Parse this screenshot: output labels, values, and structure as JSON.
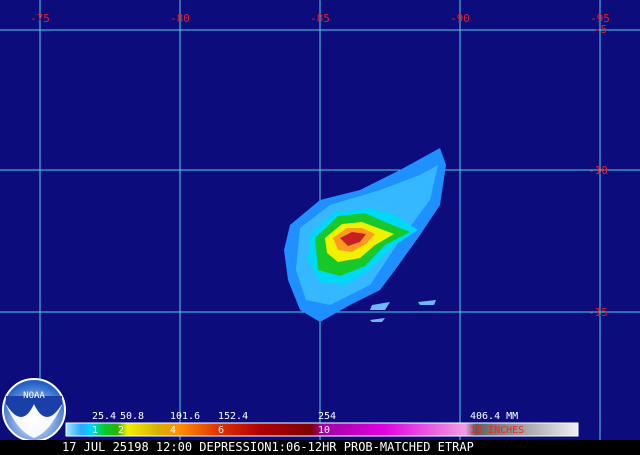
{
  "map": {
    "longitude_labels": [
      "-75",
      "-80",
      "-85",
      "-90",
      "-95"
    ],
    "latitude_labels": [
      "-5",
      "-10",
      "-15"
    ],
    "logo": "NOAA",
    "legend": {
      "mm_labels": [
        "25.4",
        "50.8",
        "101.6",
        "152.4",
        "254",
        "406.4 MM"
      ],
      "inch_labels": [
        "1",
        "2",
        "4",
        "6",
        "10",
        "16 INCHES"
      ]
    },
    "caption": "17 JUL 25198 12:00 DEPRESSION1:06-12HR PROB-MATCHED ETRAP"
  }
}
